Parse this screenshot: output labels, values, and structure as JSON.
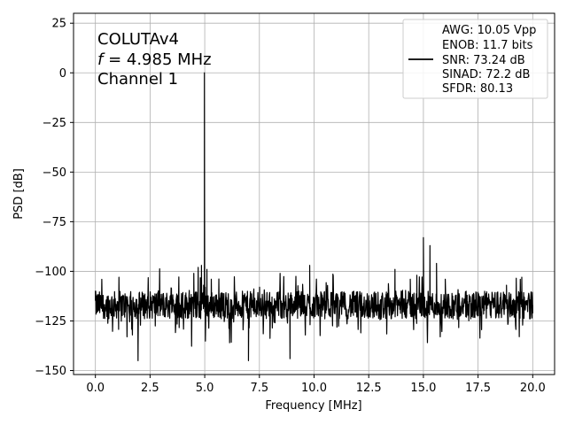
{
  "chart_data": {
    "type": "line",
    "xlabel": "Frequency [MHz]",
    "ylabel": "PSD [dB]",
    "xlim": [
      -1.0,
      21.0
    ],
    "ylim": [
      -152,
      30
    ],
    "xticks": [
      0.0,
      2.5,
      5.0,
      7.5,
      10.0,
      12.5,
      15.0,
      17.5,
      20.0
    ],
    "xtick_labels": [
      "0.0",
      "2.5",
      "5.0",
      "7.5",
      "10.0",
      "12.5",
      "15.0",
      "17.5",
      "20.0"
    ],
    "yticks": [
      25,
      0,
      -25,
      -50,
      -75,
      -100,
      -125,
      -150
    ],
    "ytick_labels": [
      "25",
      "0",
      "−25",
      "−50",
      "−75",
      "−100",
      "−125",
      "−150"
    ],
    "grid": true,
    "line_color": "#000000",
    "annotation": {
      "line1": "COLUTAv4",
      "line2_symbol": "f",
      "line2_rest": " = 4.985 MHz",
      "line3": "Channel 1"
    },
    "legend": {
      "placement": "top-right",
      "lines": [
        "AWG: 10.05 Vpp",
        "ENOB: 11.7 bits",
        "SNR: 73.24 dB",
        "SINAD: 72.2 dB",
        "SFDR: 80.13"
      ]
    },
    "noise_floor": {
      "mean": -117,
      "spread": 7,
      "x_start": 0.0,
      "x_end": 20.0
    },
    "series": [
      {
        "x": [
          0.0,
          1.0,
          1.95,
          2.5,
          3.0,
          3.5,
          4.0,
          4.5,
          4.7,
          4.85,
          4.95,
          4.985,
          5.02,
          5.1,
          5.3,
          5.5,
          6.0,
          6.5,
          7.0,
          7.5,
          8.0,
          8.5,
          8.9,
          9.3,
          9.8,
          10.3,
          11.0,
          11.8,
          12.5,
          13.3,
          13.7,
          14.0,
          14.4,
          14.7,
          15.0,
          15.3,
          15.6,
          16.0,
          16.5,
          17.0,
          17.5,
          18.0,
          18.8,
          19.5,
          19.9,
          20.0
        ],
        "y": [
          -110,
          -116,
          -145,
          -117,
          -114,
          -118,
          -115,
          -101,
          -98,
          -97,
          -107,
          0,
          -108,
          -99,
          -104,
          -112,
          -116,
          -119,
          -145,
          -118,
          -116,
          -115,
          -144,
          -110,
          -97,
          -116,
          -118,
          -115,
          -114,
          -112,
          -99,
          -112,
          -104,
          -102,
          -83,
          -87,
          -96,
          -104,
          -112,
          -115,
          -114,
          -116,
          -107,
          -103,
          -116,
          -117
        ]
      }
    ]
  }
}
